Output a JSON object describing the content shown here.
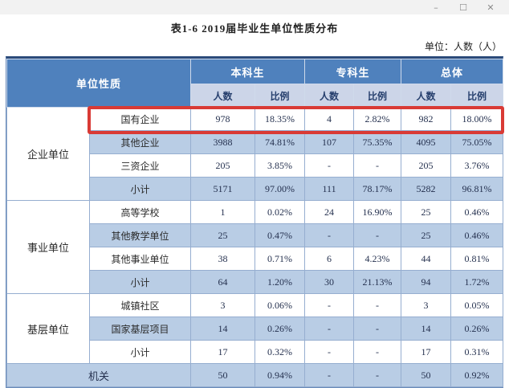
{
  "window": {
    "controls": {
      "minimize": "–",
      "maximize": "☐",
      "close": "✕"
    }
  },
  "title": "表1-6 2019届毕业生单位性质分布",
  "unit_label": "单位：人数（人）",
  "colors": {
    "header_blue": "#4f81bd",
    "subheader_blue": "#ccd5e8",
    "stripe_blue": "#b9cde5",
    "border_blue": "#96aed0",
    "highlight_red": "#d93a35"
  },
  "table": {
    "header": {
      "category": "单位性质",
      "groups": [
        {
          "label": "本科生"
        },
        {
          "label": "专科生"
        },
        {
          "label": "总体"
        }
      ],
      "sub_count": "人数",
      "sub_ratio": "比例"
    },
    "groups": [
      {
        "category": "企业单位",
        "rows": [
          {
            "name": "国有企业",
            "highlight": true,
            "values": [
              "978",
              "18.35%",
              "4",
              "2.82%",
              "982",
              "18.00%"
            ]
          },
          {
            "name": "其他企业",
            "values": [
              "3988",
              "74.81%",
              "107",
              "75.35%",
              "4095",
              "75.05%"
            ]
          },
          {
            "name": "三资企业",
            "values": [
              "205",
              "3.85%",
              "-",
              "-",
              "205",
              "3.76%"
            ]
          },
          {
            "name": "小计",
            "values": [
              "5171",
              "97.00%",
              "111",
              "78.17%",
              "5282",
              "96.81%"
            ]
          }
        ]
      },
      {
        "category": "事业单位",
        "rows": [
          {
            "name": "高等学校",
            "values": [
              "1",
              "0.02%",
              "24",
              "16.90%",
              "25",
              "0.46%"
            ]
          },
          {
            "name": "其他教学单位",
            "values": [
              "25",
              "0.47%",
              "-",
              "-",
              "25",
              "0.46%"
            ]
          },
          {
            "name": "其他事业单位",
            "values": [
              "38",
              "0.71%",
              "6",
              "4.23%",
              "44",
              "0.81%"
            ]
          },
          {
            "name": "小计",
            "values": [
              "64",
              "1.20%",
              "30",
              "21.13%",
              "94",
              "1.72%"
            ]
          }
        ]
      },
      {
        "category": "基层单位",
        "rows": [
          {
            "name": "城镇社区",
            "values": [
              "3",
              "0.06%",
              "-",
              "-",
              "3",
              "0.05%"
            ]
          },
          {
            "name": "国家基层项目",
            "values": [
              "14",
              "0.26%",
              "-",
              "-",
              "14",
              "0.26%"
            ]
          },
          {
            "name": "小计",
            "values": [
              "17",
              "0.32%",
              "-",
              "-",
              "17",
              "0.31%"
            ]
          }
        ]
      },
      {
        "category": "机关",
        "merged": true,
        "rows": [
          {
            "name": "机关",
            "values": [
              "50",
              "0.94%",
              "-",
              "-",
              "50",
              "0.92%"
            ]
          }
        ]
      }
    ]
  }
}
